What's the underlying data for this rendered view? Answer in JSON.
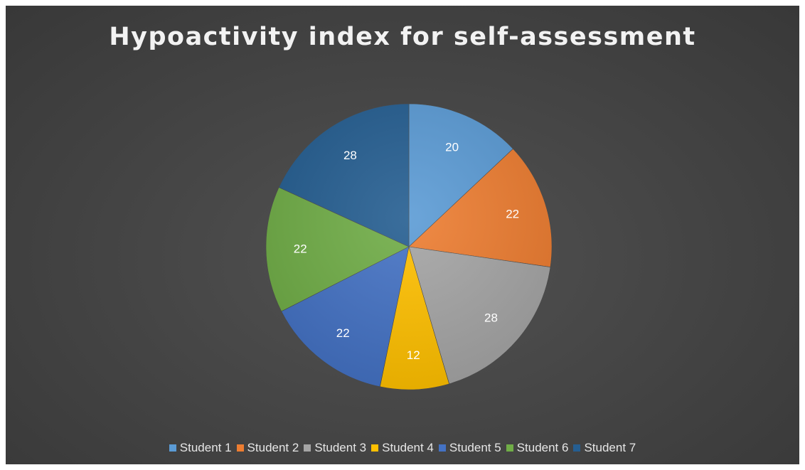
{
  "chart_data": {
    "type": "pie",
    "title": "Hypoactivity index for self-assessment",
    "legend_position": "bottom",
    "data_labels": true,
    "categories": [
      "Student 1",
      "Student 2",
      "Student 3",
      "Student 4",
      "Student 5",
      "Student 6",
      "Student 7"
    ],
    "values": [
      20,
      22,
      28,
      12,
      22,
      22,
      28
    ],
    "colors": [
      "#5b9bd5",
      "#ed7d31",
      "#a5a5a5",
      "#ffc000",
      "#4472c4",
      "#70ad47",
      "#255e91"
    ]
  }
}
